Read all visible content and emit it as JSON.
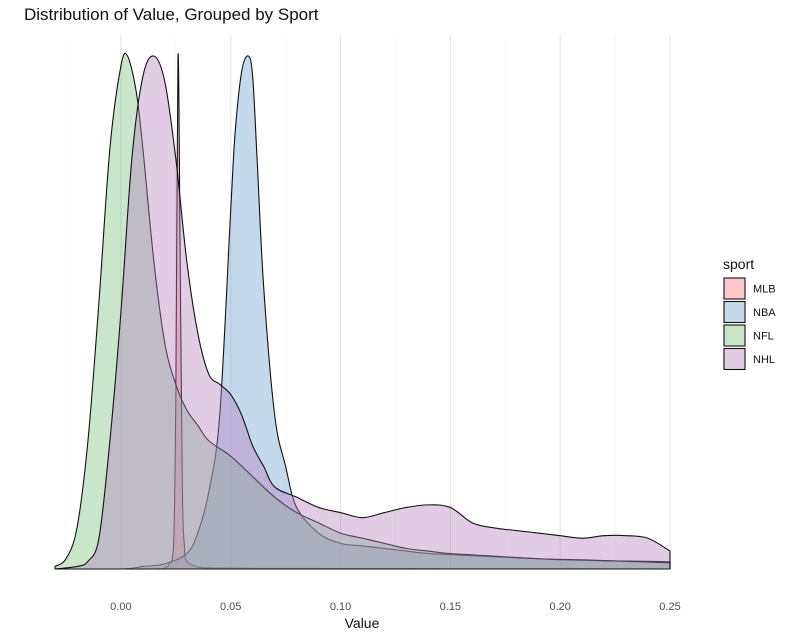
{
  "chart_data": {
    "type": "area",
    "subtype": "density",
    "title": "Distribution of Value, Grouped by Sport",
    "xlabel": "Value",
    "ylabel": "",
    "xlim": [
      -0.03,
      0.25
    ],
    "x_ticks": [
      0.0,
      0.05,
      0.1,
      0.15,
      0.2,
      0.25
    ],
    "x_tick_labels": [
      "0.00",
      "0.05",
      "0.10",
      "0.15",
      "0.20",
      "0.25"
    ],
    "y_ticks_shown": false,
    "grid": "vertical",
    "legend": {
      "title": "sport",
      "placement": "right",
      "entries": [
        "MLB",
        "NBA",
        "NFL",
        "NHL"
      ]
    },
    "fill_opacity": 0.4,
    "series": [
      {
        "name": "MLB",
        "color": "#F8767D",
        "x": [
          -0.03,
          0.015,
          0.02,
          0.022,
          0.024,
          0.025,
          0.026,
          0.027,
          0.028,
          0.029,
          0.03,
          0.035,
          0.04,
          0.05,
          0.07,
          0.1,
          0.15,
          0.2,
          0.25
        ],
        "y": [
          0,
          0,
          0.003,
          0.01,
          0.05,
          0.33,
          1.0,
          0.6,
          0.15,
          0.04,
          0.015,
          0.004,
          0.002,
          0.0015,
          0.001,
          0.0008,
          0.0005,
          0.0003,
          0
        ]
      },
      {
        "name": "NBA",
        "color": "#6F9FCF",
        "x": [
          -0.03,
          0.0,
          0.01,
          0.02,
          0.03,
          0.035,
          0.04,
          0.045,
          0.05,
          0.052,
          0.055,
          0.058,
          0.06,
          0.062,
          0.065,
          0.07,
          0.075,
          0.08,
          0.09,
          0.1,
          0.11,
          0.12,
          0.13,
          0.14,
          0.15,
          0.16,
          0.17,
          0.18,
          0.19,
          0.2,
          0.22,
          0.24,
          0.25
        ],
        "y": [
          0,
          0,
          0.005,
          0.01,
          0.03,
          0.07,
          0.15,
          0.3,
          0.7,
          0.85,
          0.97,
          1.0,
          0.96,
          0.8,
          0.55,
          0.3,
          0.2,
          0.12,
          0.07,
          0.05,
          0.045,
          0.04,
          0.035,
          0.03,
          0.028,
          0.026,
          0.024,
          0.022,
          0.02,
          0.018,
          0.016,
          0.015,
          0.014
        ]
      },
      {
        "name": "NFL",
        "color": "#77C17D",
        "x": [
          -0.03,
          -0.025,
          -0.02,
          -0.015,
          -0.01,
          -0.005,
          0.0,
          0.003,
          0.007,
          0.01,
          0.015,
          0.02,
          0.025,
          0.03,
          0.035,
          0.04,
          0.05,
          0.06,
          0.07,
          0.08,
          0.09,
          0.1,
          0.11,
          0.12,
          0.13,
          0.14,
          0.15,
          0.17,
          0.19,
          0.21,
          0.23,
          0.25
        ],
        "y": [
          0.005,
          0.02,
          0.08,
          0.25,
          0.52,
          0.82,
          0.98,
          1.0,
          0.93,
          0.82,
          0.6,
          0.44,
          0.36,
          0.31,
          0.28,
          0.25,
          0.22,
          0.18,
          0.14,
          0.11,
          0.09,
          0.07,
          0.06,
          0.05,
          0.04,
          0.035,
          0.03,
          0.025,
          0.02,
          0.018,
          0.015,
          0.012
        ]
      },
      {
        "name": "NHL",
        "color": "#B57EBD",
        "x": [
          -0.03,
          -0.02,
          -0.015,
          -0.01,
          -0.005,
          0.0,
          0.005,
          0.01,
          0.015,
          0.02,
          0.025,
          0.03,
          0.035,
          0.04,
          0.045,
          0.05,
          0.055,
          0.06,
          0.065,
          0.07,
          0.08,
          0.09,
          0.1,
          0.11,
          0.12,
          0.13,
          0.14,
          0.15,
          0.16,
          0.17,
          0.18,
          0.19,
          0.2,
          0.21,
          0.22,
          0.23,
          0.24,
          0.25
        ],
        "y": [
          0,
          0.005,
          0.015,
          0.06,
          0.25,
          0.5,
          0.8,
          0.96,
          1.0,
          0.95,
          0.8,
          0.6,
          0.46,
          0.38,
          0.36,
          0.34,
          0.3,
          0.24,
          0.2,
          0.16,
          0.14,
          0.12,
          0.11,
          0.1,
          0.11,
          0.12,
          0.125,
          0.12,
          0.09,
          0.08,
          0.075,
          0.07,
          0.065,
          0.06,
          0.065,
          0.065,
          0.06,
          0.035
        ]
      }
    ]
  }
}
